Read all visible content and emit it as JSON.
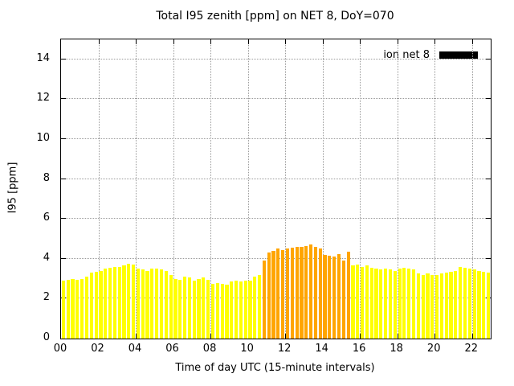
{
  "chart_data": {
    "type": "bar",
    "title": "Total I95 zenith [ppm] on NET 8, DoY=070",
    "xlabel": "Time of day UTC (15-minute intervals)",
    "ylabel": "I95 [ppm]",
    "legend": "ion net 8",
    "legend_position": "top-right",
    "grid": true,
    "ylim": [
      0,
      15
    ],
    "xlim_hours": [
      0,
      23
    ],
    "yticks": [
      0,
      2,
      4,
      6,
      8,
      10,
      12,
      14
    ],
    "xtick_hours": [
      0,
      2,
      4,
      6,
      8,
      10,
      12,
      14,
      16,
      18,
      20,
      22
    ],
    "xtick_labels": [
      "00",
      "02",
      "04",
      "06",
      "08",
      "10",
      "12",
      "14",
      "16",
      "18",
      "20",
      "22"
    ],
    "interval_minutes": 15,
    "colors": {
      "yellow": "#ffff00",
      "orange": "#ffa500",
      "legend_swatch": "#000000",
      "grid": "#9a9a9a"
    },
    "bars": [
      [
        "00:00",
        2.9,
        "yellow"
      ],
      [
        "00:15",
        2.95,
        "yellow"
      ],
      [
        "00:30",
        3.0,
        "yellow"
      ],
      [
        "00:45",
        2.95,
        "yellow"
      ],
      [
        "01:00",
        3.0,
        "yellow"
      ],
      [
        "01:15",
        3.1,
        "yellow"
      ],
      [
        "01:30",
        3.3,
        "yellow"
      ],
      [
        "01:45",
        3.35,
        "yellow"
      ],
      [
        "02:00",
        3.4,
        "yellow"
      ],
      [
        "02:15",
        3.5,
        "yellow"
      ],
      [
        "02:30",
        3.55,
        "yellow"
      ],
      [
        "02:45",
        3.6,
        "yellow"
      ],
      [
        "03:00",
        3.6,
        "yellow"
      ],
      [
        "03:15",
        3.65,
        "yellow"
      ],
      [
        "03:30",
        3.75,
        "yellow"
      ],
      [
        "03:45",
        3.7,
        "yellow"
      ],
      [
        "04:00",
        3.5,
        "yellow"
      ],
      [
        "04:15",
        3.45,
        "yellow"
      ],
      [
        "04:30",
        3.4,
        "yellow"
      ],
      [
        "04:45",
        3.5,
        "yellow"
      ],
      [
        "05:00",
        3.5,
        "yellow"
      ],
      [
        "05:15",
        3.45,
        "yellow"
      ],
      [
        "05:30",
        3.4,
        "yellow"
      ],
      [
        "05:45",
        3.2,
        "yellow"
      ],
      [
        "06:00",
        3.0,
        "yellow"
      ],
      [
        "06:15",
        2.95,
        "yellow"
      ],
      [
        "06:30",
        3.1,
        "yellow"
      ],
      [
        "06:45",
        3.05,
        "yellow"
      ],
      [
        "07:00",
        2.9,
        "yellow"
      ],
      [
        "07:15",
        3.0,
        "yellow"
      ],
      [
        "07:30",
        3.05,
        "yellow"
      ],
      [
        "07:45",
        2.95,
        "yellow"
      ],
      [
        "08:00",
        2.75,
        "yellow"
      ],
      [
        "08:15",
        2.8,
        "yellow"
      ],
      [
        "08:30",
        2.75,
        "yellow"
      ],
      [
        "08:45",
        2.7,
        "yellow"
      ],
      [
        "09:00",
        2.85,
        "yellow"
      ],
      [
        "09:15",
        2.9,
        "yellow"
      ],
      [
        "09:30",
        2.85,
        "yellow"
      ],
      [
        "09:45",
        2.9,
        "yellow"
      ],
      [
        "10:00",
        2.9,
        "yellow"
      ],
      [
        "10:15",
        3.1,
        "yellow"
      ],
      [
        "10:30",
        3.2,
        "yellow"
      ],
      [
        "10:45",
        3.9,
        "orange"
      ],
      [
        "11:00",
        4.3,
        "orange"
      ],
      [
        "11:15",
        4.4,
        "orange"
      ],
      [
        "11:30",
        4.5,
        "orange"
      ],
      [
        "11:45",
        4.45,
        "orange"
      ],
      [
        "12:00",
        4.5,
        "orange"
      ],
      [
        "12:15",
        4.55,
        "orange"
      ],
      [
        "12:30",
        4.6,
        "orange"
      ],
      [
        "12:45",
        4.6,
        "orange"
      ],
      [
        "13:00",
        4.65,
        "orange"
      ],
      [
        "13:15",
        4.7,
        "orange"
      ],
      [
        "13:30",
        4.6,
        "orange"
      ],
      [
        "13:45",
        4.5,
        "orange"
      ],
      [
        "14:00",
        4.2,
        "orange"
      ],
      [
        "14:15",
        4.15,
        "orange"
      ],
      [
        "14:30",
        4.1,
        "orange"
      ],
      [
        "14:45",
        4.25,
        "orange"
      ],
      [
        "15:00",
        3.9,
        "orange"
      ],
      [
        "15:15",
        4.35,
        "orange"
      ],
      [
        "15:30",
        3.65,
        "yellow"
      ],
      [
        "15:45",
        3.7,
        "yellow"
      ],
      [
        "16:00",
        3.6,
        "yellow"
      ],
      [
        "16:15",
        3.65,
        "yellow"
      ],
      [
        "16:30",
        3.55,
        "yellow"
      ],
      [
        "16:45",
        3.5,
        "yellow"
      ],
      [
        "17:00",
        3.45,
        "yellow"
      ],
      [
        "17:15",
        3.5,
        "yellow"
      ],
      [
        "17:30",
        3.45,
        "yellow"
      ],
      [
        "17:45",
        3.4,
        "yellow"
      ],
      [
        "18:00",
        3.5,
        "yellow"
      ],
      [
        "18:15",
        3.55,
        "yellow"
      ],
      [
        "18:30",
        3.5,
        "yellow"
      ],
      [
        "18:45",
        3.45,
        "yellow"
      ],
      [
        "19:00",
        3.25,
        "yellow"
      ],
      [
        "19:15",
        3.2,
        "yellow"
      ],
      [
        "19:30",
        3.25,
        "yellow"
      ],
      [
        "19:45",
        3.2,
        "yellow"
      ],
      [
        "20:00",
        3.2,
        "yellow"
      ],
      [
        "20:15",
        3.25,
        "yellow"
      ],
      [
        "20:30",
        3.3,
        "yellow"
      ],
      [
        "20:45",
        3.35,
        "yellow"
      ],
      [
        "21:00",
        3.4,
        "yellow"
      ],
      [
        "21:15",
        3.6,
        "yellow"
      ],
      [
        "21:30",
        3.55,
        "yellow"
      ],
      [
        "21:45",
        3.5,
        "yellow"
      ],
      [
        "22:00",
        3.45,
        "yellow"
      ],
      [
        "22:15",
        3.4,
        "yellow"
      ],
      [
        "22:30",
        3.35,
        "yellow"
      ],
      [
        "22:45",
        3.3,
        "yellow"
      ]
    ]
  }
}
